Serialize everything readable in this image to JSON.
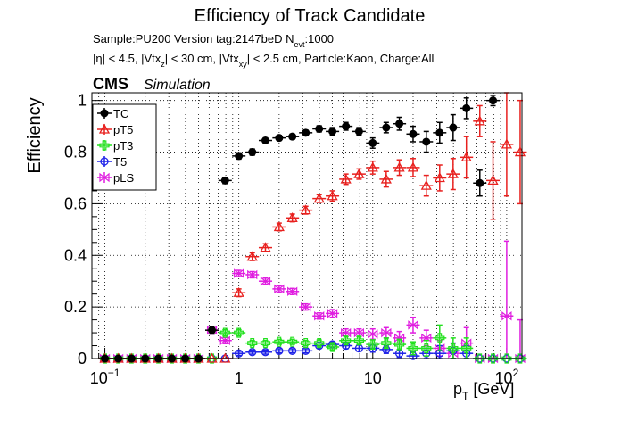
{
  "header": {
    "title": "Efficiency of Track Candidate",
    "sample_line_prefix": "Sample:PU200   Version tag:2147beD  N",
    "sample_line_sub": "evt",
    "sample_line_suffix": ":1000",
    "cuts_p1": "|η| < 4.5, |Vtx",
    "cuts_s1": "z",
    "cuts_p2": "| < 30 cm, |Vtx",
    "cuts_s2": "xy",
    "cuts_p3": "| < 2.5 cm, Particle:Kaon, Charge:All",
    "cms_label": "CMS",
    "simulation_label": "Simulation"
  },
  "colors": {
    "TC": "#000000",
    "pT5": "#e8201e",
    "pT3": "#22e01e",
    "T5": "#1e22e8",
    "pLS": "#e01ee0"
  },
  "chart_data": {
    "type": "scatter",
    "xscale": "log",
    "xlim": [
      0.08,
      130
    ],
    "ylim": [
      0,
      1.03
    ],
    "grid": true,
    "legend_position": "top-left",
    "xlabel_main": "p",
    "xlabel_sub": "T",
    "xlabel_unit": " [GeV]",
    "ylabel": "Efficiency",
    "x_ticks": [
      {
        "label_main": "10",
        "label_sup": "−1",
        "value": 0.1
      },
      {
        "label_main": "1",
        "label_sup": "",
        "value": 1
      },
      {
        "label_main": "10",
        "label_sup": "",
        "value": 10
      },
      {
        "label_main": "10",
        "label_sup": "2",
        "value": 100
      }
    ],
    "y_ticks": [
      {
        "label": "0",
        "value": 0
      },
      {
        "label": "0.2",
        "value": 0.2
      },
      {
        "label": "0.4",
        "value": 0.4
      },
      {
        "label": "0.6",
        "value": 0.6
      },
      {
        "label": "0.8",
        "value": 0.8
      },
      {
        "label": "1",
        "value": 1
      }
    ],
    "x": [
      0.1,
      0.126,
      0.158,
      0.2,
      0.251,
      0.316,
      0.398,
      0.5,
      0.63,
      0.79,
      1.0,
      1.26,
      1.58,
      2.0,
      2.51,
      3.16,
      3.98,
      5.0,
      6.3,
      7.9,
      10.0,
      12.6,
      15.8,
      20.0,
      25.1,
      31.6,
      39.8,
      50.0,
      63.0,
      79.0,
      100.0,
      126.0
    ],
    "series": [
      {
        "name": "TC",
        "marker": "circle-filled",
        "values": [
          0,
          0,
          0,
          0,
          0,
          0,
          0,
          0,
          0.11,
          0.69,
          0.785,
          0.8,
          0.845,
          0.855,
          0.86,
          0.875,
          0.89,
          0.88,
          0.9,
          0.88,
          0.835,
          0.895,
          0.91,
          0.87,
          0.84,
          0.875,
          0.895,
          0.97,
          0.68,
          1.0,
          null,
          null
        ],
        "errors": [
          0,
          0,
          0,
          0,
          0,
          0,
          0,
          0,
          0.015,
          0.012,
          0.012,
          0.012,
          0.01,
          0.01,
          0.01,
          0.01,
          0.012,
          0.015,
          0.015,
          0.015,
          0.02,
          0.02,
          0.025,
          0.03,
          0.04,
          0.04,
          0.05,
          0.04,
          0.05,
          0.02,
          null,
          null
        ]
      },
      {
        "name": "pT5",
        "marker": "triangle-open",
        "values": [
          0,
          0,
          0,
          0,
          0,
          0,
          0,
          0,
          0,
          0,
          0.255,
          0.395,
          0.43,
          0.51,
          0.545,
          0.575,
          0.62,
          0.63,
          0.695,
          0.715,
          0.74,
          0.695,
          0.74,
          0.74,
          0.67,
          0.7,
          0.715,
          0.78,
          0.92,
          0.69,
          0.83,
          0.8
        ],
        "errors": [
          0,
          0,
          0,
          0,
          0,
          0,
          0,
          0,
          0,
          0,
          0.015,
          0.015,
          0.015,
          0.015,
          0.015,
          0.015,
          0.015,
          0.02,
          0.02,
          0.02,
          0.025,
          0.03,
          0.03,
          0.035,
          0.04,
          0.05,
          0.06,
          0.08,
          0.06,
          0.15,
          0.2,
          0.2
        ]
      },
      {
        "name": "pT3",
        "marker": "cross-open",
        "values": [
          0,
          0,
          0,
          0,
          0,
          0,
          0,
          0,
          0,
          0.1,
          0.1,
          0.06,
          0.06,
          0.065,
          0.065,
          0.06,
          0.06,
          0.045,
          0.07,
          0.07,
          0.055,
          0.06,
          0.055,
          0.04,
          0.04,
          0.08,
          0.04,
          0.04,
          0,
          0,
          0,
          0
        ],
        "errors": [
          0,
          0,
          0,
          0,
          0,
          0,
          0,
          0,
          0,
          0.012,
          0.012,
          0.01,
          0.01,
          0.01,
          0.01,
          0.01,
          0.012,
          0.012,
          0.015,
          0.015,
          0.018,
          0.02,
          0.02,
          0.025,
          0.03,
          0.05,
          0.04,
          0.04,
          0,
          0,
          0,
          0
        ]
      },
      {
        "name": "T5",
        "marker": "circle-open",
        "values": [
          0,
          0,
          0,
          0,
          0,
          0,
          0,
          0,
          0,
          0,
          0.02,
          0.025,
          0.025,
          0.03,
          0.03,
          0.03,
          0.05,
          0.055,
          0.05,
          0.04,
          0.04,
          0.035,
          0.02,
          0.01,
          0.02,
          0.02,
          0.03,
          0.02,
          0,
          0,
          0,
          0
        ],
        "errors": [
          0,
          0,
          0,
          0,
          0,
          0,
          0,
          0,
          0,
          0,
          0.008,
          0.008,
          0.008,
          0.008,
          0.008,
          0.008,
          0.01,
          0.01,
          0.012,
          0.012,
          0.015,
          0.015,
          0.015,
          0.015,
          0.02,
          0.03,
          0.03,
          0.03,
          0,
          0,
          0,
          0
        ]
      },
      {
        "name": "pLS",
        "marker": "bowtie-open",
        "values": [
          0,
          0,
          0,
          0,
          0,
          0,
          0,
          0,
          0.11,
          0.07,
          0.33,
          0.325,
          0.3,
          0.27,
          0.26,
          0.2,
          0.165,
          0.175,
          0.1,
          0.1,
          0.095,
          0.1,
          0.08,
          0.13,
          0.08,
          0.04,
          0.02,
          0.06,
          0,
          0,
          0.165,
          0
        ],
        "errors": [
          0,
          0,
          0,
          0,
          0,
          0,
          0,
          0,
          0.015,
          0.012,
          0.012,
          0.012,
          0.012,
          0.012,
          0.012,
          0.012,
          0.012,
          0.015,
          0.015,
          0.015,
          0.02,
          0.02,
          0.025,
          0.03,
          0.03,
          0.03,
          0.04,
          0.06,
          0,
          0,
          0.29,
          0.15
        ]
      }
    ]
  }
}
